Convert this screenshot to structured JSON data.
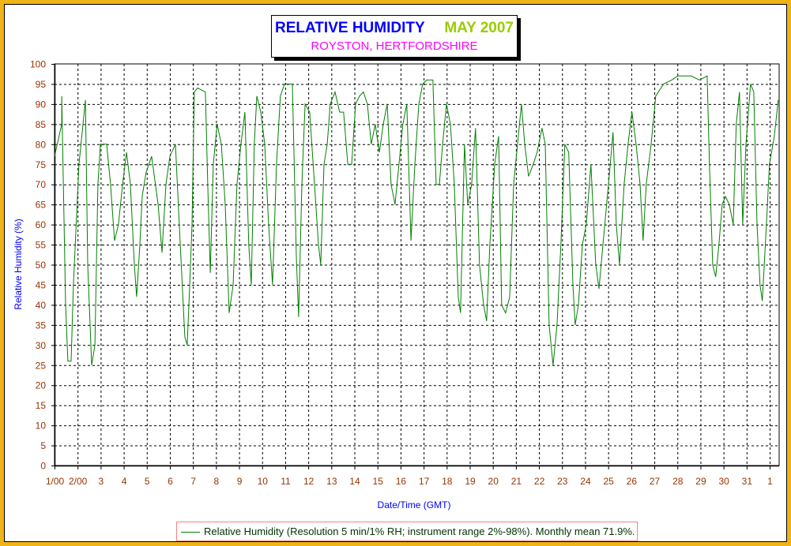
{
  "title": {
    "main": "RELATIVE HUMIDITY",
    "period": "MAY 2007",
    "location": "ROYSTON, HERTFORDSHIRE"
  },
  "legend": {
    "label": "Relative Humidity (Resolution 5 min/1% RH; instrument range 2%-98%). Monthly mean 71.9%."
  },
  "colors": {
    "series": "#008000",
    "axis_text": "#993300",
    "axis_title": "#0000FF",
    "border": "#F0B418"
  },
  "chart_data": {
    "type": "line",
    "title": "RELATIVE HUMIDITY MAY 2007",
    "xlabel": "Date/Time (GMT)",
    "ylabel": "Relative Humidity (%)",
    "xlim": [
      1,
      32.41
    ],
    "ylim": [
      0,
      100
    ],
    "grid": true,
    "legend_position": "bottom",
    "yticks": [
      0,
      5,
      10,
      15,
      20,
      25,
      30,
      35,
      40,
      45,
      50,
      55,
      60,
      65,
      70,
      75,
      80,
      85,
      90,
      95,
      100
    ],
    "xtick_values": [
      1,
      2,
      3,
      4,
      5,
      6,
      7,
      8,
      9,
      10,
      11,
      12,
      13,
      14,
      15,
      16,
      17,
      18,
      19,
      20,
      21,
      22,
      23,
      24,
      25,
      26,
      27,
      28,
      29,
      30,
      31,
      32
    ],
    "xtick_labels": [
      "1/00",
      "2/00",
      "3",
      "4",
      "5",
      "6",
      "7",
      "8",
      "9",
      "10",
      "11",
      "12",
      "13",
      "14",
      "15",
      "16",
      "17",
      "18",
      "19",
      "20",
      "21",
      "22",
      "23",
      "24",
      "25",
      "26",
      "27",
      "28",
      "29",
      "30",
      "31",
      "1"
    ],
    "series": [
      {
        "name": "Relative Humidity",
        "x": [
          1.0,
          1.31,
          1.31,
          1.48,
          1.58,
          1.72,
          1.82,
          2.06,
          2.34,
          2.44,
          2.61,
          2.75,
          2.88,
          2.99,
          3.26,
          3.43,
          3.6,
          3.77,
          3.95,
          4.12,
          4.29,
          4.46,
          4.56,
          4.7,
          4.8,
          4.97,
          5.21,
          5.49,
          5.66,
          5.83,
          6.0,
          6.24,
          6.45,
          6.65,
          6.75,
          6.86,
          6.96,
          7.06,
          7.2,
          7.54,
          7.64,
          7.75,
          7.88,
          8.05,
          8.23,
          8.4,
          8.57,
          8.74,
          8.91,
          9.08,
          9.25,
          9.42,
          9.53,
          9.66,
          9.77,
          9.94,
          10.11,
          10.28,
          10.45,
          10.62,
          10.79,
          10.97,
          11.31,
          11.48,
          11.58,
          11.72,
          11.86,
          12.06,
          12.27,
          12.44,
          12.54,
          12.68,
          12.82,
          12.95,
          13.16,
          13.36,
          13.53,
          13.71,
          13.88,
          14.05,
          14.22,
          14.39,
          14.56,
          14.73,
          14.9,
          15.08,
          15.25,
          15.42,
          15.59,
          15.76,
          15.93,
          16.1,
          16.27,
          16.45,
          16.62,
          16.79,
          16.96,
          17.13,
          17.4,
          17.54,
          17.68,
          17.82,
          17.99,
          18.16,
          18.33,
          18.5,
          18.6,
          18.77,
          18.91,
          19.08,
          19.25,
          19.42,
          19.6,
          19.73,
          19.87,
          20.08,
          20.25,
          20.38,
          20.55,
          20.73,
          20.9,
          21.07,
          21.24,
          21.38,
          21.55,
          21.75,
          21.92,
          22.13,
          22.27,
          22.44,
          22.61,
          22.78,
          22.95,
          23.12,
          23.29,
          23.47,
          23.57,
          23.71,
          23.88,
          24.05,
          24.25,
          24.46,
          24.6,
          24.77,
          25.01,
          25.21,
          25.35,
          25.49,
          25.69,
          25.86,
          26.03,
          26.21,
          26.38,
          26.51,
          26.65,
          26.86,
          27.06,
          27.4,
          27.75,
          28.02,
          28.6,
          28.95,
          29.29,
          29.39,
          29.53,
          29.66,
          29.8,
          29.94,
          30.08,
          30.25,
          30.42,
          30.55,
          30.69,
          30.83,
          30.97,
          31.17,
          31.31,
          31.45,
          31.58,
          31.68,
          31.86,
          31.99,
          32.2,
          32.37
        ],
        "y": [
          77,
          85,
          92,
          40,
          26,
          26,
          45,
          75,
          91,
          50,
          25,
          30,
          70,
          80,
          80,
          70,
          56,
          60,
          70,
          78,
          70,
          50,
          42,
          55,
          67,
          73,
          77,
          65,
          53,
          70,
          77,
          80,
          55,
          32,
          30,
          45,
          60,
          93,
          94,
          93,
          70,
          48,
          75,
          85,
          80,
          65,
          38,
          45,
          70,
          80,
          88,
          55,
          45,
          80,
          92,
          88,
          80,
          60,
          45,
          75,
          92,
          95,
          95,
          52,
          37,
          70,
          90,
          88,
          70,
          55,
          50,
          75,
          80,
          90,
          93,
          88,
          88,
          75,
          75,
          90,
          92,
          93,
          90,
          80,
          85,
          78,
          85,
          90,
          70,
          65,
          75,
          85,
          90,
          56,
          75,
          90,
          95,
          96,
          96,
          70,
          70,
          80,
          90,
          85,
          70,
          42,
          38,
          80,
          65,
          70,
          84,
          50,
          40,
          36,
          55,
          75,
          82,
          40,
          38,
          42,
          70,
          80,
          90,
          80,
          72,
          75,
          78,
          84,
          80,
          35,
          25,
          35,
          55,
          80,
          78,
          45,
          35,
          40,
          55,
          60,
          75,
          50,
          44,
          55,
          70,
          83,
          60,
          50,
          70,
          80,
          88,
          80,
          70,
          56,
          70,
          80,
          92,
          95,
          96,
          97,
          97,
          96,
          97,
          75,
          50,
          47,
          55,
          65,
          67,
          65,
          60,
          85,
          93,
          60,
          80,
          95,
          93,
          60,
          45,
          41,
          60,
          75,
          82,
          91
        ]
      }
    ]
  }
}
